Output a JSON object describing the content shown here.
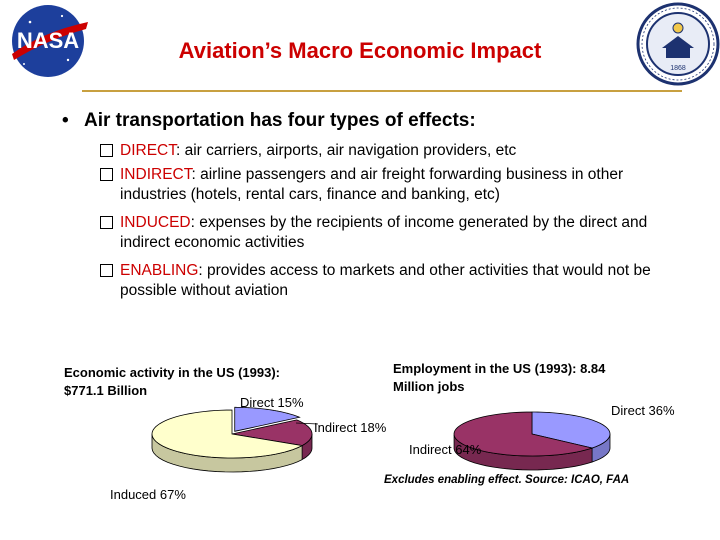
{
  "slide": {
    "title": "Aviation’s Macro Economic Impact",
    "main_bullet": "Air transportation has four types of effects:",
    "sub_bullets": [
      {
        "keyword": "DIRECT",
        "text": ": air carriers, airports, air navigation providers, etc"
      },
      {
        "keyword": "INDIRECT",
        "text": ": airline passengers and air freight forwarding business in other industries (hotels, rental cars, finance and banking, etc)"
      },
      {
        "keyword": "INDUCED",
        "text": ": expenses by the recipients of income generated by the direct and indirect economic activities"
      },
      {
        "keyword": "ENABLING",
        "text": ": provides access to markets and other activities that would not be possible without aviation"
      }
    ],
    "source_note": "Excludes enabling effect.  Source: ICAO, FAA",
    "logos": {
      "left": "NASA",
      "right": "University of California seal"
    }
  },
  "colors": {
    "title": "#cc0000",
    "keyword": "#cc0000",
    "rule": "#c8a040",
    "direct": "#9999ff",
    "indirect": "#993366",
    "induced": "#ffffcc"
  },
  "chart_data": [
    {
      "type": "pie",
      "title_line1": "Economic activity in the US (1993):",
      "title_line2": "$771.1 Billion",
      "slices": [
        {
          "label": "Direct 15%",
          "value": 15,
          "color": "#9999ff"
        },
        {
          "label": "Indirect 18%",
          "value": 18,
          "color": "#993366"
        },
        {
          "label": "Induced 67%",
          "value": 67,
          "color": "#ffffcc"
        }
      ]
    },
    {
      "type": "pie",
      "title_line1": "Employment in the US (1993): 8.84",
      "title_line2": "Million jobs",
      "slices": [
        {
          "label": "Direct 36%",
          "value": 36,
          "color": "#9999ff"
        },
        {
          "label": "Indirect 64%",
          "value": 64,
          "color": "#993366"
        }
      ]
    }
  ]
}
